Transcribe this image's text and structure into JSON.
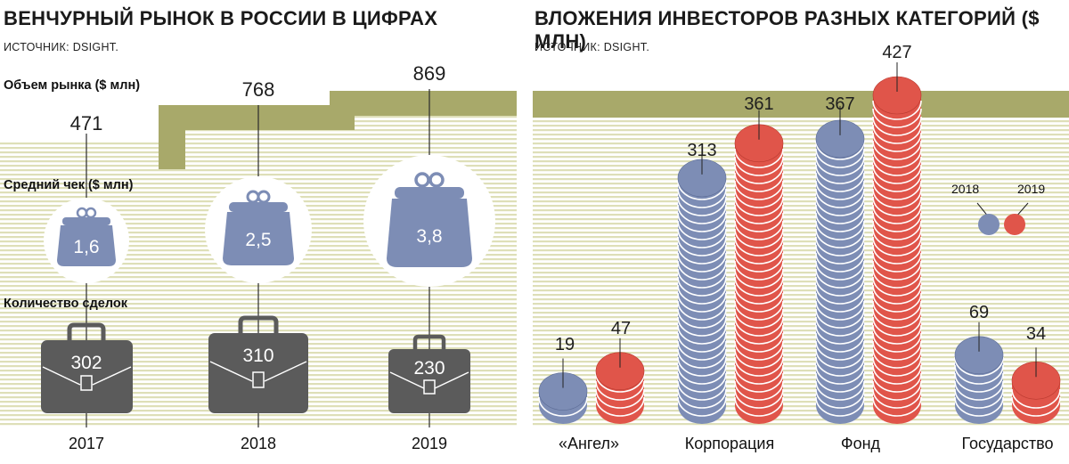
{
  "left": {
    "title": "ВЕНЧУРНЫЙ РЫНОК В РОССИИ В ЦИФРАХ",
    "source": "ИСТОЧНИК: DSIGHT.",
    "market_label": "Объем рынка ($ млн)",
    "check_label": "Средний чек ($ млн)",
    "deals_label": "Количество сделок"
  },
  "right": {
    "title": "ВЛОЖЕНИЯ ИНВЕСТОРОВ РАЗНЫХ КАТЕГОРИЙ  ($ МЛН)",
    "source": "ИСТОЧНИК: DSIGHT."
  },
  "colors": {
    "olive": "#a8a96a",
    "blue": "#7d8db5",
    "red": "#e0554a",
    "dark": "#5b5b5b",
    "stripe": "#dedfb8"
  },
  "chart_data": [
    {
      "type": "table",
      "title": "ВЕНЧУРНЫЙ РЫНОК В РОССИИ В ЦИФРАХ",
      "years": [
        "2017",
        "2018",
        "2019"
      ],
      "market_volume": [
        "471",
        "768",
        "869"
      ],
      "avg_check": [
        "1,6",
        "2,5",
        "3,8"
      ],
      "deals": [
        "302",
        "310",
        "230"
      ]
    },
    {
      "type": "bar",
      "title": "ВЛОЖЕНИЯ ИНВЕСТОРОВ РАЗНЫХ КАТЕГОРИЙ  ($ МЛН)",
      "categories": [
        "«Ангел»",
        "Корпорация",
        "Фонд",
        "Государство"
      ],
      "series": [
        {
          "name": "2018",
          "values": [
            19,
            313,
            367,
            69
          ]
        },
        {
          "name": "2019",
          "values": [
            47,
            361,
            427,
            34
          ]
        }
      ]
    }
  ]
}
